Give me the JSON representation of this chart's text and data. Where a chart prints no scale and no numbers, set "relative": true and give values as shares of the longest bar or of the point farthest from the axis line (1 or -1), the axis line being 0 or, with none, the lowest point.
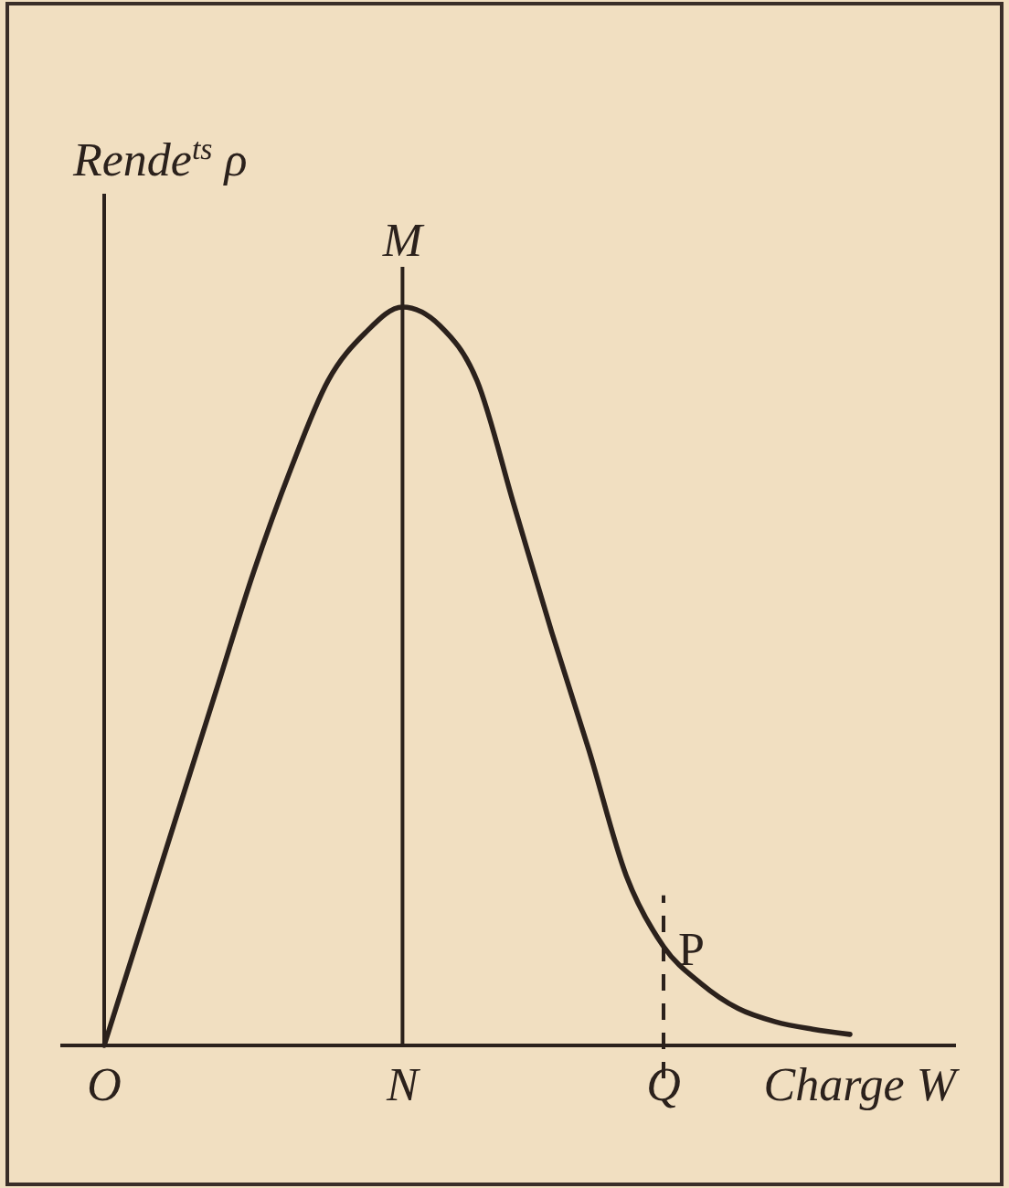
{
  "chart_data": {
    "type": "line",
    "relative": true,
    "xlabel": "Charge W",
    "ylabel": "Rende$^{ts}$ ρ",
    "categories": [
      "O",
      null,
      null,
      null,
      null,
      null,
      null,
      null,
      "N",
      null,
      null,
      null,
      null,
      null,
      null,
      "Q",
      null,
      null,
      null,
      null,
      null
    ],
    "series": [
      {
        "color": "#2b211c",
        "values": [
          0,
          0.16,
          0.32,
          0.48,
          0.64,
          0.78,
          0.9,
          0.965,
          1,
          0.975,
          0.9,
          0.73,
          0.56,
          0.4,
          0.23,
          0.134,
          0.084,
          0.05,
          0.032,
          0.022,
          0.015
        ]
      }
    ],
    "ref_lines": [
      {
        "axis": "x",
        "value": "N",
        "label": "M",
        "color": "#2b211c"
      },
      {
        "axis": "x",
        "value": "Q",
        "line_style": "dashed",
        "color": "#2b211c"
      }
    ],
    "annotations": [
      {
        "text": "P",
        "x": "Q",
        "y": 0.134
      }
    ]
  }
}
